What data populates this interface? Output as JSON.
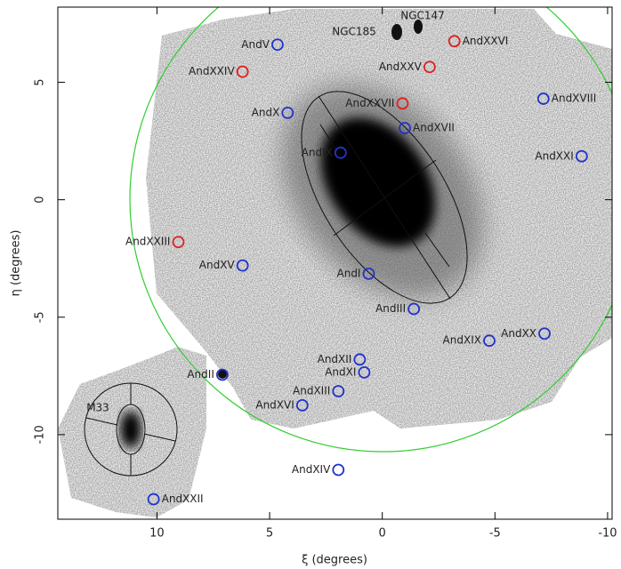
{
  "chart_data": {
    "type": "scatter",
    "x_label": "ξ (degrees)",
    "y_label": "η (degrees)",
    "xlim": [
      14.4,
      -10.2
    ],
    "ylim": [
      -13.6,
      8.2
    ],
    "xticks": [
      10,
      5,
      0,
      -5,
      -10
    ],
    "yticks": [
      5,
      0,
      -5,
      -10
    ],
    "annotations": [
      "M33",
      "NGC185",
      "NGC147"
    ],
    "points": [
      {
        "name": "AndV",
        "x": 4.65,
        "y": 6.6,
        "color": "#2233cc"
      },
      {
        "name": "AndXXIV",
        "x": 6.2,
        "y": 5.45,
        "color": "#dd2222"
      },
      {
        "name": "AndX",
        "x": 4.2,
        "y": 3.7,
        "color": "#2233cc"
      },
      {
        "name": "AndXXVI",
        "x": -3.2,
        "y": 6.75,
        "color": "#dd2222"
      },
      {
        "name": "AndXXV",
        "x": -2.1,
        "y": 5.65,
        "color": "#dd2222"
      },
      {
        "name": "AndXXVII",
        "x": -0.9,
        "y": 4.1,
        "color": "#dd2222"
      },
      {
        "name": "AndXVII",
        "x": -1.0,
        "y": 3.05,
        "color": "#2233cc"
      },
      {
        "name": "AndIX",
        "x": 1.85,
        "y": 2.0,
        "color": "#2233cc"
      },
      {
        "name": "AndXVIII",
        "x": -7.15,
        "y": 4.3,
        "color": "#2233cc"
      },
      {
        "name": "AndXXI",
        "x": -8.85,
        "y": 1.85,
        "color": "#2233cc"
      },
      {
        "name": "AndXXIII",
        "x": 9.05,
        "y": -1.8,
        "color": "#dd2222"
      },
      {
        "name": "AndXV",
        "x": 6.2,
        "y": -2.8,
        "color": "#2233cc"
      },
      {
        "name": "AndI",
        "x": 0.6,
        "y": -3.15,
        "color": "#2233cc"
      },
      {
        "name": "AndIII",
        "x": -1.4,
        "y": -4.65,
        "color": "#2233cc"
      },
      {
        "name": "AndXIX",
        "x": -4.75,
        "y": -6.0,
        "color": "#2233cc"
      },
      {
        "name": "AndXX",
        "x": -7.2,
        "y": -5.7,
        "color": "#2233cc"
      },
      {
        "name": "AndXII",
        "x": 1.0,
        "y": -6.8,
        "color": "#2233cc"
      },
      {
        "name": "AndXI",
        "x": 0.8,
        "y": -7.35,
        "color": "#2233cc"
      },
      {
        "name": "AndXIII",
        "x": 1.95,
        "y": -8.15,
        "color": "#2233cc"
      },
      {
        "name": "AndXVI",
        "x": 3.55,
        "y": -8.75,
        "color": "#2233cc"
      },
      {
        "name": "AndII",
        "x": 7.1,
        "y": -7.45,
        "color": "#2233cc"
      },
      {
        "name": "AndXIV",
        "x": 1.95,
        "y": -11.5,
        "color": "#2233cc"
      },
      {
        "name": "AndXXII",
        "x": 10.15,
        "y": -12.75,
        "color": "#2233cc"
      }
    ]
  }
}
